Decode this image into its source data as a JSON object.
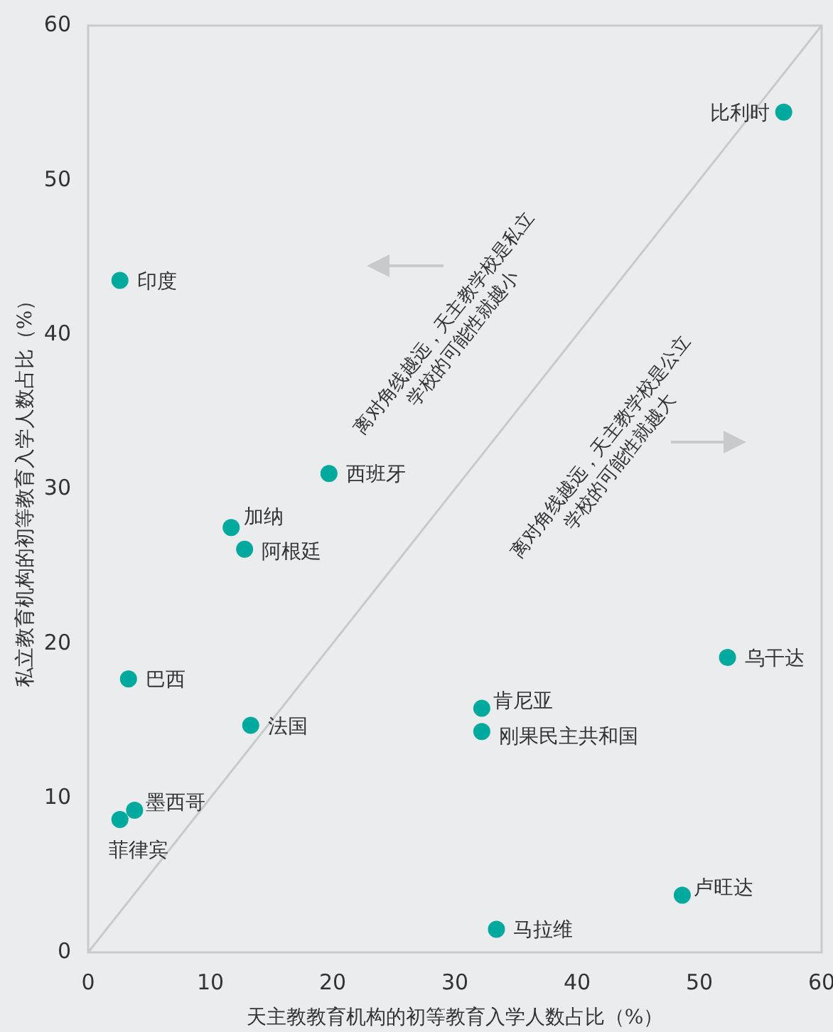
{
  "chart_data": {
    "type": "scatter",
    "xlabel": "天主教教育机构的初等教育入学人数占比（%）",
    "ylabel": "私立教育机构的初等教育入学人数占比（%）",
    "xlim": [
      0,
      60
    ],
    "xticks": [
      0,
      10,
      20,
      30,
      40,
      50,
      60
    ],
    "ylim": [
      0,
      60
    ],
    "yticks": [
      0,
      10,
      20,
      30,
      40,
      50,
      60
    ],
    "grid": false,
    "legend": false,
    "marker": "circle",
    "annotations": [
      "离对角线越远，天主教学校是私立\n学校的可能性就越小",
      "离对角线越远，天主教学校是公立\n学校的可能性就越大"
    ],
    "series": [
      {
        "type": "line",
        "color": "#c8cacb",
        "x": [
          0,
          60
        ],
        "values": [
          0,
          60
        ],
        "marker": "none",
        "line_style": "solid"
      },
      {
        "name": "比利时",
        "color": "#00a99d",
        "x": [
          56.9
        ],
        "values": [
          54.4
        ]
      },
      {
        "name": "印度",
        "color": "#00a99d",
        "x": [
          2.6
        ],
        "values": [
          43.5
        ]
      },
      {
        "name": "西班牙",
        "color": "#00a99d",
        "x": [
          19.7
        ],
        "values": [
          31.0
        ]
      },
      {
        "name": "加纳",
        "color": "#00a99d",
        "x": [
          11.7
        ],
        "values": [
          27.5
        ]
      },
      {
        "name": "阿根廷",
        "color": "#00a99d",
        "x": [
          12.8
        ],
        "values": [
          26.1
        ]
      },
      {
        "name": "巴西",
        "color": "#00a99d",
        "x": [
          3.3
        ],
        "values": [
          17.7
        ]
      },
      {
        "name": "乌干达",
        "color": "#00a99d",
        "x": [
          52.3
        ],
        "values": [
          19.1
        ]
      },
      {
        "name": "肯尼亚",
        "color": "#00a99d",
        "x": [
          32.2
        ],
        "values": [
          15.8
        ]
      },
      {
        "name": "法国",
        "color": "#00a99d",
        "x": [
          13.3
        ],
        "values": [
          14.7
        ]
      },
      {
        "name": "刚果民主共和国",
        "color": "#00a99d",
        "x": [
          32.2
        ],
        "values": [
          14.3
        ]
      },
      {
        "name": "墨西哥",
        "color": "#00a99d",
        "x": [
          3.8
        ],
        "values": [
          9.2
        ]
      },
      {
        "name": "菲律宾",
        "color": "#00a99d",
        "x": [
          2.6
        ],
        "values": [
          8.6
        ]
      },
      {
        "name": "卢旺达",
        "color": "#00a99d",
        "x": [
          48.6
        ],
        "values": [
          3.7
        ]
      },
      {
        "name": "马拉维",
        "color": "#00a99d",
        "x": [
          33.4
        ],
        "values": [
          1.5
        ]
      }
    ]
  }
}
